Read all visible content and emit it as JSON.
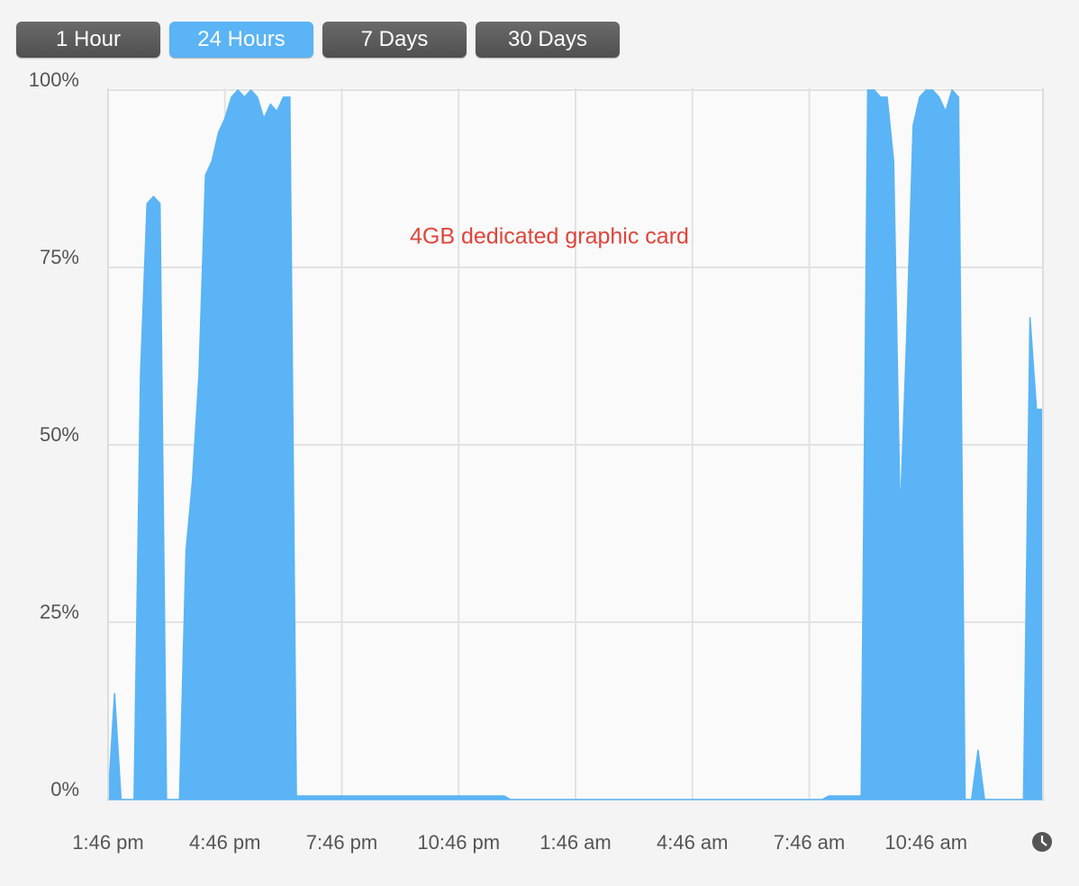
{
  "buttons": [
    "1 Hour",
    "24 Hours",
    "7 Days",
    "30 Days"
  ],
  "selected_button": 1,
  "chart_data": {
    "type": "area",
    "annotation": "4GB dedicated graphic card",
    "color": "#5ab4f5",
    "categories": [
      "1:46 pm",
      null,
      null,
      null,
      null,
      null,
      null,
      null,
      null,
      null,
      null,
      null,
      null,
      null,
      null,
      null,
      null,
      null,
      "4:46 pm",
      null,
      null,
      null,
      null,
      null,
      null,
      null,
      null,
      null,
      null,
      null,
      null,
      null,
      null,
      null,
      null,
      null,
      "7:46 pm",
      null,
      null,
      null,
      null,
      null,
      null,
      null,
      null,
      null,
      null,
      null,
      null,
      null,
      null,
      null,
      null,
      null,
      "10:46 pm",
      null,
      null,
      null,
      null,
      null,
      null,
      null,
      null,
      null,
      null,
      null,
      null,
      null,
      null,
      null,
      null,
      null,
      "1:46 am",
      null,
      null,
      null,
      null,
      null,
      null,
      null,
      null,
      null,
      null,
      null,
      null,
      null,
      null,
      null,
      null,
      null,
      "4:46 am",
      null,
      null,
      null,
      null,
      null,
      null,
      null,
      null,
      null,
      null,
      null,
      null,
      null,
      null,
      null,
      null,
      null,
      "7:46 am",
      null,
      null,
      null,
      null,
      null,
      null,
      null,
      null,
      null,
      null,
      null,
      null,
      null,
      null,
      null,
      null,
      null,
      "10:46 am",
      null,
      null,
      null,
      null,
      null,
      null,
      null,
      null,
      null,
      null,
      null,
      null,
      null,
      null,
      null,
      null,
      null,
      null
    ],
    "values": [
      0,
      15,
      0,
      0,
      0,
      60,
      84,
      85,
      84,
      0,
      0,
      0,
      35,
      45,
      60,
      88,
      90,
      94,
      96,
      99,
      100,
      99,
      100,
      99,
      96,
      98,
      97,
      99,
      99,
      0.5,
      0.5,
      0.5,
      0.5,
      0.5,
      0.5,
      0.5,
      0.5,
      0.5,
      0.5,
      0.5,
      0.5,
      0.5,
      0.5,
      0.5,
      0.5,
      0.5,
      0.5,
      0.5,
      0.5,
      0.5,
      0.5,
      0.5,
      0.5,
      0.5,
      0.5,
      0.5,
      0.5,
      0.5,
      0.5,
      0.5,
      0.5,
      0.5,
      0,
      0,
      0,
      0,
      0,
      0,
      0,
      0,
      0,
      0,
      0,
      0,
      0,
      0,
      0,
      0,
      0,
      0,
      0,
      0,
      0,
      0,
      0,
      0,
      0,
      0,
      0,
      0,
      0,
      0,
      0,
      0,
      0,
      0,
      0,
      0,
      0,
      0,
      0,
      0,
      0,
      0,
      0,
      0,
      0,
      0,
      0,
      0,
      0,
      0.5,
      0.5,
      0.5,
      0.5,
      0.5,
      0.5,
      100,
      100,
      99,
      99,
      90,
      40,
      65,
      95,
      99,
      100,
      100,
      99,
      97,
      100,
      99,
      0,
      0,
      7,
      0,
      0,
      0,
      0,
      0,
      0,
      0,
      68,
      55,
      55
    ],
    "ylim": [
      0,
      100
    ],
    "yticks": [
      {
        "value": 0,
        "label": "0%"
      },
      {
        "value": 25,
        "label": "25%"
      },
      {
        "value": 50,
        "label": "50%"
      },
      {
        "value": 75,
        "label": "75%"
      },
      {
        "value": 100,
        "label": "100%"
      }
    ],
    "grid": true
  }
}
